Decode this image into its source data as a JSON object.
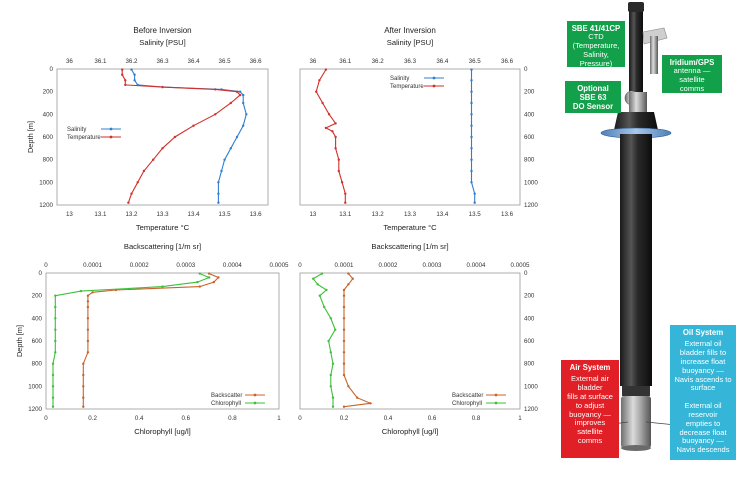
{
  "colors": {
    "salinity": "#2f7fd0",
    "temperature": "#d2302a",
    "backscatter": "#c8642a",
    "chlorophyll": "#3fbf3a",
    "frame": "#9a9a9a",
    "green_box": "#12a14a",
    "red_box": "#e11f26",
    "cyan_box": "#35b6d8"
  },
  "chart_data": [
    {
      "type": "line",
      "title": "Before Inversion",
      "top_axis_label": "Salinity [PSU]",
      "top_ticks": [
        "36",
        "36.1",
        "36.2",
        "36.3",
        "36.4",
        "36.5",
        "36.6"
      ],
      "top_range": [
        35.96,
        36.64
      ],
      "bottom_axis_label": "Temperature °C",
      "bottom_ticks": [
        "13",
        "13.1",
        "13.2",
        "13.3",
        "13.4",
        "13.5",
        "13.6"
      ],
      "bottom_range": [
        12.96,
        13.64
      ],
      "ylabel": "Depth [m]",
      "y_ticks": [
        "0",
        "200",
        "400",
        "600",
        "800",
        "1000",
        "1200"
      ],
      "ylim": [
        0,
        1200
      ],
      "legend": [
        "Salinity",
        "Temperature"
      ],
      "legend_position": "middle-left",
      "series": [
        {
          "name": "Salinity",
          "axis": "top",
          "depth": [
            5,
            50,
            100,
            140,
            160,
            180,
            200,
            230,
            300,
            400,
            500,
            600,
            700,
            800,
            900,
            1000,
            1100,
            1180
          ],
          "values": [
            36.2,
            36.21,
            36.21,
            36.22,
            36.3,
            36.49,
            36.55,
            36.56,
            36.56,
            36.57,
            36.56,
            36.54,
            36.52,
            36.5,
            36.49,
            36.48,
            36.48,
            36.48
          ]
        },
        {
          "name": "Temperature",
          "axis": "bottom",
          "depth": [
            5,
            50,
            100,
            140,
            160,
            180,
            200,
            230,
            300,
            400,
            500,
            600,
            700,
            800,
            900,
            1000,
            1100,
            1180
          ],
          "values": [
            13.17,
            13.17,
            13.18,
            13.18,
            13.3,
            13.47,
            13.54,
            13.55,
            13.52,
            13.47,
            13.4,
            13.34,
            13.3,
            13.27,
            13.24,
            13.22,
            13.2,
            13.19
          ]
        }
      ]
    },
    {
      "type": "line",
      "title": "After Inversion",
      "top_axis_label": "Salinity [PSU]",
      "top_ticks": [
        "36",
        "36.1",
        "36.2",
        "36.3",
        "36.4",
        "36.5",
        "36.6"
      ],
      "top_range": [
        35.96,
        36.64
      ],
      "bottom_axis_label": "Temperature °C",
      "bottom_ticks": [
        "13",
        "13.1",
        "13.2",
        "13.3",
        "13.4",
        "13.5",
        "13.6"
      ],
      "bottom_range": [
        12.96,
        13.64
      ],
      "right_y_ticks": [
        "0",
        "200",
        "400",
        "600",
        "800",
        "1000",
        "1200"
      ],
      "ylim": [
        0,
        1200
      ],
      "legend": [
        "Salinity",
        "Temperature"
      ],
      "legend_position": "top-right",
      "series": [
        {
          "name": "Salinity",
          "axis": "top",
          "depth": [
            5,
            100,
            200,
            300,
            400,
            500,
            600,
            700,
            800,
            900,
            1000,
            1100,
            1180
          ],
          "values": [
            36.49,
            36.49,
            36.49,
            36.49,
            36.49,
            36.49,
            36.49,
            36.49,
            36.49,
            36.49,
            36.49,
            36.5,
            36.5
          ]
        },
        {
          "name": "Temperature",
          "axis": "bottom",
          "depth": [
            5,
            100,
            200,
            300,
            400,
            480,
            520,
            550,
            600,
            700,
            800,
            900,
            1000,
            1100,
            1180
          ],
          "values": [
            13.04,
            13.02,
            13.01,
            13.03,
            13.05,
            13.07,
            13.04,
            13.06,
            13.07,
            13.07,
            13.08,
            13.08,
            13.09,
            13.1,
            13.1
          ]
        }
      ]
    },
    {
      "type": "line",
      "title": "",
      "top_axis_label": "Backscattering [1/m sr]",
      "top_ticks": [
        "0",
        "0.0001",
        "0.0002",
        "0.0003",
        "0.0004",
        "0.0005"
      ],
      "top_range": [
        0,
        0.0005
      ],
      "bottom_axis_label": "Chlorophyll [ug/l]",
      "bottom_ticks": [
        "0",
        "0.2",
        "0.4",
        "0.6",
        "0.8",
        "1"
      ],
      "bottom_range": [
        0,
        1
      ],
      "ylabel": "Depth [m]",
      "y_ticks": [
        "0",
        "200",
        "400",
        "600",
        "800",
        "1000",
        "1200"
      ],
      "ylim": [
        0,
        1200
      ],
      "legend": [
        "Backscatter",
        "Chlorophyll"
      ],
      "legend_position": "bottom-right",
      "series": [
        {
          "name": "Backscatter",
          "axis": "top",
          "depth": [
            5,
            40,
            80,
            120,
            150,
            170,
            200,
            250,
            300,
            400,
            500,
            600,
            700,
            800,
            900,
            1000,
            1100,
            1180
          ],
          "values": [
            0.00035,
            0.00037,
            0.00036,
            0.00033,
            0.00015,
            0.0001,
            9e-05,
            9e-05,
            9e-05,
            9e-05,
            9e-05,
            9e-05,
            9e-05,
            8e-05,
            8e-05,
            8e-05,
            8e-05,
            8e-05
          ]
        },
        {
          "name": "Chlorophyll",
          "axis": "bottom",
          "depth": [
            5,
            40,
            80,
            120,
            160,
            200,
            300,
            400,
            500,
            600,
            700,
            800,
            900,
            1000,
            1100,
            1180
          ],
          "values": [
            0.66,
            0.7,
            0.65,
            0.5,
            0.15,
            0.04,
            0.04,
            0.04,
            0.04,
            0.04,
            0.04,
            0.03,
            0.03,
            0.03,
            0.03,
            0.03
          ]
        }
      ]
    },
    {
      "type": "line",
      "title": "",
      "top_axis_label": "Backscattering [1/m sr]",
      "top_ticks": [
        "0",
        "0.0001",
        "0.0002",
        "0.0003",
        "0.0004",
        "0.0005"
      ],
      "top_range": [
        0,
        0.0005
      ],
      "bottom_axis_label": "Chlorophyll [ug/l]",
      "bottom_ticks": [
        "0",
        "0.2",
        "0.4",
        "0.6",
        "0.8",
        "1"
      ],
      "bottom_range": [
        0,
        1
      ],
      "right_y_ticks": [
        "0",
        "200",
        "400",
        "600",
        "800",
        "1000",
        "1200"
      ],
      "ylim": [
        0,
        1200
      ],
      "legend": [
        "Backscatter",
        "Chlorophyll"
      ],
      "legend_position": "bottom-right",
      "series": [
        {
          "name": "Backscatter",
          "axis": "top",
          "depth": [
            5,
            50,
            100,
            150,
            200,
            300,
            400,
            500,
            600,
            700,
            800,
            900,
            1000,
            1100,
            1150,
            1180
          ],
          "values": [
            0.00011,
            0.00012,
            0.00011,
            0.0001,
            0.0001,
            0.0001,
            0.0001,
            0.0001,
            0.0001,
            0.0001,
            0.0001,
            0.0001,
            0.00011,
            0.00013,
            0.00016,
            0.0001
          ]
        },
        {
          "name": "Chlorophyll",
          "axis": "bottom",
          "depth": [
            5,
            50,
            100,
            150,
            200,
            300,
            400,
            500,
            600,
            700,
            800,
            900,
            1000,
            1100,
            1180
          ],
          "values": [
            0.1,
            0.06,
            0.08,
            0.12,
            0.09,
            0.11,
            0.14,
            0.16,
            0.13,
            0.14,
            0.15,
            0.14,
            0.14,
            0.15,
            0.15
          ]
        }
      ]
    }
  ],
  "callouts": {
    "ctd": {
      "title": "SBE 41/41CP",
      "lines": [
        "CTD",
        "(Temperature,",
        "Salinity,",
        "Pressure)"
      ]
    },
    "antenna": {
      "title": "Iridium/GPS",
      "lines": [
        "antenna —",
        "satellite",
        "comms"
      ]
    },
    "do_sensor": {
      "title": "Optional",
      "lines": [
        "SBE 63",
        "DO Sensor"
      ]
    },
    "oil_system": {
      "title": "Oil System",
      "lines": [
        "External oil",
        "bladder fills to",
        "increase float",
        "buoyancy —",
        "Navis ascends to",
        "surface",
        "",
        "External oil",
        "reservoir",
        "empties to",
        "decrease float",
        "buoyancy —",
        "Navis descends"
      ]
    },
    "air_system": {
      "title": "Air System",
      "lines": [
        "External air",
        "bladder",
        "fills at surface",
        "to adjust",
        "buoyancy —",
        "improves",
        "satellite",
        "comms"
      ]
    }
  }
}
